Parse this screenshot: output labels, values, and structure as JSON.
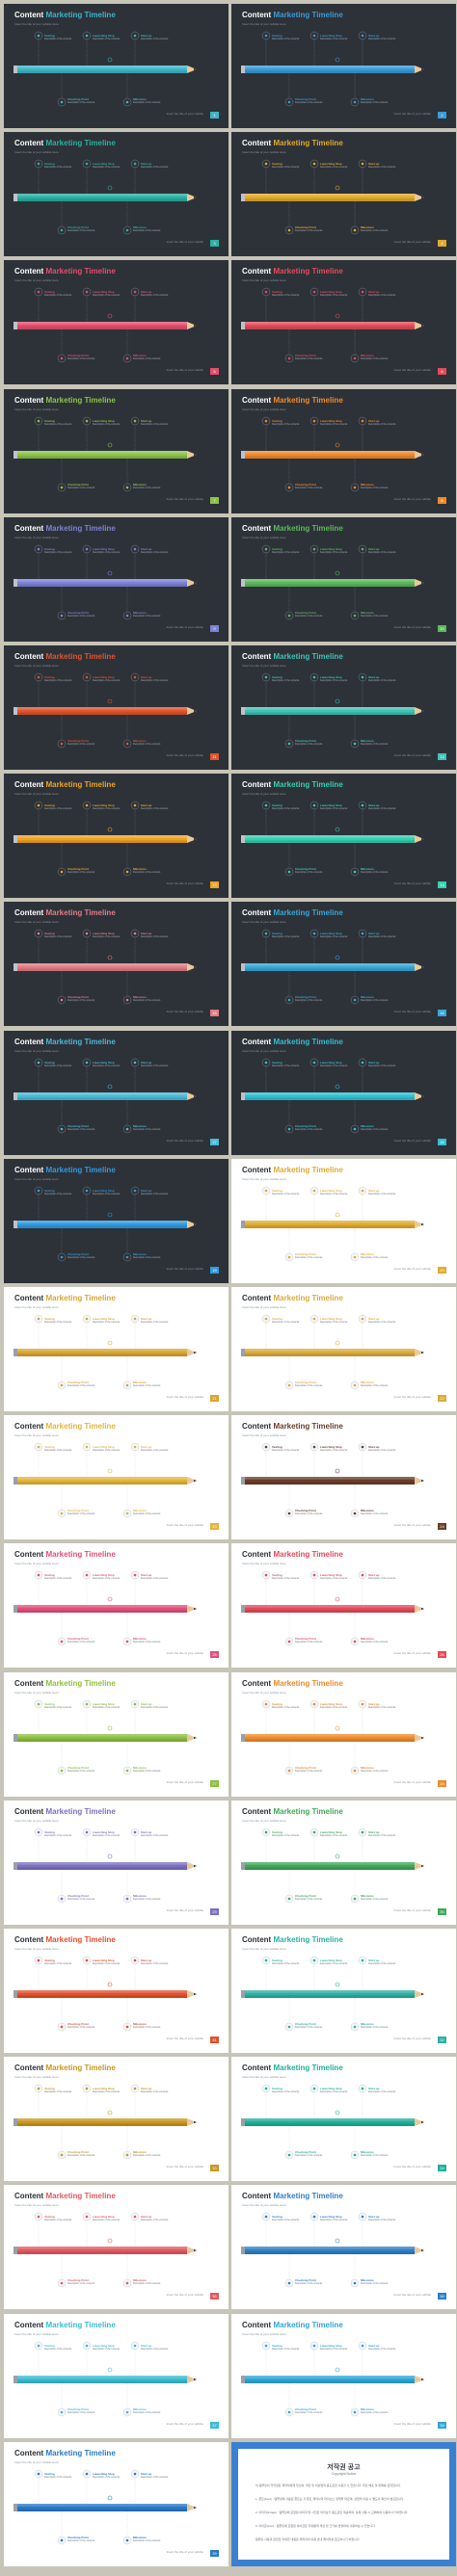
{
  "template": {
    "title_word1": "Content",
    "title_word2": "Marketing Timeline",
    "subtitle": "Insert the title of your subtitle Here",
    "footer": "Insert the title of your subtitle",
    "milestones_top": [
      {
        "label": "Vesting",
        "desc": "Description of the contents"
      },
      {
        "label": "Launching Stop",
        "desc": "Description of the contents"
      },
      {
        "label": "Start up",
        "desc": "Description of the contents"
      }
    ],
    "milestones_bottom": [
      {
        "label": "Checking Point",
        "desc": "Description of the contents"
      },
      {
        "label": "Milestone",
        "desc": "Description of the contents"
      }
    ]
  },
  "slides": [
    {
      "theme": "dark",
      "color": "#3fb5c8",
      "page": "1"
    },
    {
      "theme": "dark",
      "color": "#3a9bd8",
      "page": "2"
    },
    {
      "theme": "dark",
      "color": "#2bb0a3",
      "page": "3"
    },
    {
      "theme": "dark",
      "color": "#e0a92b",
      "page": "4"
    },
    {
      "theme": "dark",
      "color": "#e04f6e",
      "page": "5"
    },
    {
      "theme": "dark",
      "color": "#e24b5a",
      "page": "6"
    },
    {
      "theme": "dark",
      "color": "#8bc34a",
      "page": "7"
    },
    {
      "theme": "dark",
      "color": "#ef8a2b",
      "page": "8"
    },
    {
      "theme": "dark",
      "color": "#7c83d6",
      "page": "9"
    },
    {
      "theme": "dark",
      "color": "#5cb85c",
      "page": "10"
    },
    {
      "theme": "dark",
      "color": "#e0542e",
      "page": "11"
    },
    {
      "theme": "dark",
      "color": "#40c3b6",
      "page": "12"
    },
    {
      "theme": "dark",
      "color": "#f0a323",
      "page": "13"
    },
    {
      "theme": "dark",
      "color": "#35d0b0",
      "page": "14"
    },
    {
      "theme": "dark",
      "color": "#e07c84",
      "page": "15"
    },
    {
      "theme": "dark",
      "color": "#36a8d6",
      "page": "16"
    },
    {
      "theme": "dark",
      "color": "#4ab9d6",
      "page": "17"
    },
    {
      "theme": "dark",
      "color": "#2ec1d4",
      "page": "18"
    },
    {
      "theme": "dark",
      "color": "#2f9be0",
      "page": "19"
    },
    {
      "theme": "light",
      "color": "#e1ab2c",
      "page": "20"
    },
    {
      "theme": "light",
      "color": "#d9a431",
      "page": "21"
    },
    {
      "theme": "light",
      "color": "#dbaa39",
      "page": "22"
    },
    {
      "theme": "light",
      "color": "#e3b43b",
      "page": "23"
    },
    {
      "theme": "light",
      "color": "#6a3d2a",
      "page": "24"
    },
    {
      "theme": "light",
      "color": "#e04f7a",
      "page": "25"
    },
    {
      "theme": "light",
      "color": "#e24b5a",
      "page": "26"
    },
    {
      "theme": "light",
      "color": "#8bbf3f",
      "page": "27"
    },
    {
      "theme": "light",
      "color": "#ef8a2b",
      "page": "28"
    },
    {
      "theme": "light",
      "color": "#7b6fc2",
      "page": "29"
    },
    {
      "theme": "light",
      "color": "#3fa85a",
      "page": "30"
    },
    {
      "theme": "light",
      "color": "#e2502c",
      "page": "31"
    },
    {
      "theme": "light",
      "color": "#2bb0a3",
      "page": "32"
    },
    {
      "theme": "light",
      "color": "#c9961f",
      "page": "33"
    },
    {
      "theme": "light",
      "color": "#1fb09a",
      "page": "34"
    },
    {
      "theme": "light",
      "color": "#e05a60",
      "page": "35"
    },
    {
      "theme": "light",
      "color": "#2f7fc7",
      "page": "36"
    },
    {
      "theme": "light",
      "color": "#3bbcd1",
      "page": "37"
    },
    {
      "theme": "light",
      "color": "#2ea7d8",
      "page": "38"
    },
    {
      "theme": "light",
      "color": "#2a79c9",
      "page": "39"
    }
  ],
  "info": {
    "title": "저작권 공고",
    "subtitle": "Copyright Notice",
    "paragraphs": [
      "이 템플릿의 저작권은 제작자에게 있으며, 개인 및 비상업적 용도로만 사용할 수 있습니다. 무단 배포 및 판매를 금지합니다.",
      "1. 폰트(Font) : 템플릿에 사용된 폰트는 각 폰트 제작사의 라이선스 정책을 따르며, 상업적 이용 시 별도의 확인이 필요합니다.",
      "2. 이미지(Image) : 템플릿에 포함된 이미지 및 사진은 미리보기 용도로만 제공되며, 실제 사용 시 교체하여 사용하시기 바랍니다.",
      "3. 아이콘(Icon) : 템플릿에 포함된 아이콘은 자유롭게 색상 및 크기를 변경하여 사용하실 수 있습니다.",
      "템플릿 사용과 관련한 자세한 내용은 제작자의 이용 안내 페이지를 참고하시기 바랍니다."
    ]
  }
}
